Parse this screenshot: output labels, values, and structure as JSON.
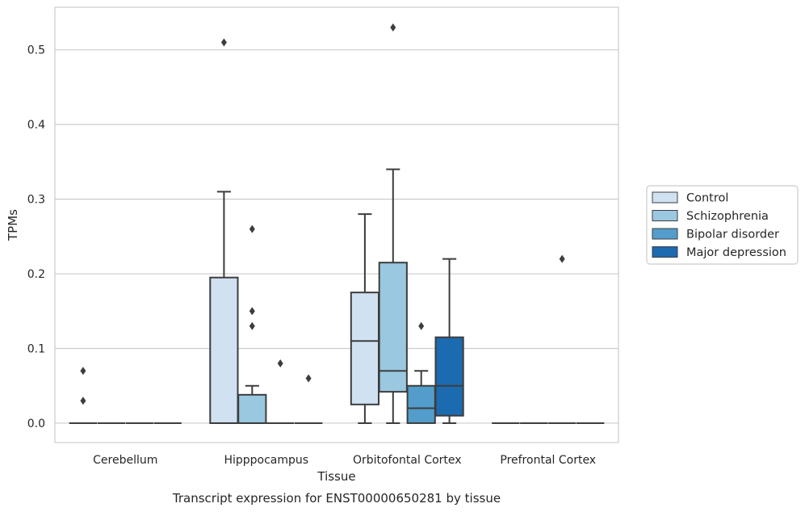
{
  "chart_data": {
    "type": "box",
    "title": "Transcript expression for ENST00000650281 by tissue",
    "xlabel": "Tissue",
    "ylabel": "TPMs",
    "ylim": [
      -0.026,
      0.557
    ],
    "yticks": [
      0.0,
      0.1,
      0.2,
      0.3,
      0.4,
      0.5
    ],
    "ytick_labels": [
      "0.0",
      "0.1",
      "0.2",
      "0.3",
      "0.4",
      "0.5"
    ],
    "grid": "horizontal",
    "legend_position": "right",
    "categories": [
      "Cerebellum",
      "Hipppocampus",
      "Orbitofontal Cortex",
      "Prefrontal Cortex"
    ],
    "series": [
      {
        "name": "Control",
        "color": "#d0e1f2",
        "boxes": [
          {
            "category": "Cerebellum",
            "q1": 0.0,
            "median": 0.0,
            "q3": 0.0,
            "whisker_low": 0.0,
            "whisker_high": 0.0,
            "outliers": [
              0.07,
              0.03
            ]
          },
          {
            "category": "Hipppocampus",
            "q1": 0.0,
            "median": 0.0,
            "q3": 0.195,
            "whisker_low": 0.0,
            "whisker_high": 0.31,
            "outliers": [
              0.51
            ]
          },
          {
            "category": "Orbitofontal Cortex",
            "q1": 0.025,
            "median": 0.11,
            "q3": 0.175,
            "whisker_low": 0.0,
            "whisker_high": 0.28,
            "outliers": []
          },
          {
            "category": "Prefrontal Cortex",
            "q1": 0.0,
            "median": 0.0,
            "q3": 0.0,
            "whisker_low": 0.0,
            "whisker_high": 0.0,
            "outliers": []
          }
        ]
      },
      {
        "name": "Schizophrenia",
        "color": "#9ac8e0",
        "boxes": [
          {
            "category": "Cerebellum",
            "q1": 0.0,
            "median": 0.0,
            "q3": 0.0,
            "whisker_low": 0.0,
            "whisker_high": 0.0,
            "outliers": []
          },
          {
            "category": "Hipppocampus",
            "q1": 0.0,
            "median": 0.0,
            "q3": 0.038,
            "whisker_low": 0.0,
            "whisker_high": 0.05,
            "outliers": [
              0.15,
              0.13,
              0.26
            ]
          },
          {
            "category": "Orbitofontal Cortex",
            "q1": 0.042,
            "median": 0.07,
            "q3": 0.215,
            "whisker_low": 0.0,
            "whisker_high": 0.34,
            "outliers": [
              0.53
            ]
          },
          {
            "category": "Prefrontal Cortex",
            "q1": 0.0,
            "median": 0.0,
            "q3": 0.0,
            "whisker_low": 0.0,
            "whisker_high": 0.0,
            "outliers": []
          }
        ]
      },
      {
        "name": "Bipolar disorder",
        "color": "#529dcc",
        "boxes": [
          {
            "category": "Cerebellum",
            "q1": 0.0,
            "median": 0.0,
            "q3": 0.0,
            "whisker_low": 0.0,
            "whisker_high": 0.0,
            "outliers": []
          },
          {
            "category": "Hipppocampus",
            "q1": 0.0,
            "median": 0.0,
            "q3": 0.0,
            "whisker_low": 0.0,
            "whisker_high": 0.0,
            "outliers": [
              0.08
            ]
          },
          {
            "category": "Orbitofontal Cortex",
            "q1": 0.0,
            "median": 0.02,
            "q3": 0.05,
            "whisker_low": 0.0,
            "whisker_high": 0.07,
            "outliers": [
              0.13
            ]
          },
          {
            "category": "Prefrontal Cortex",
            "q1": 0.0,
            "median": 0.0,
            "q3": 0.0,
            "whisker_low": 0.0,
            "whisker_high": 0.0,
            "outliers": [
              0.22
            ]
          }
        ]
      },
      {
        "name": "Major depression",
        "color": "#1c6aaf",
        "boxes": [
          {
            "category": "Cerebellum",
            "q1": 0.0,
            "median": 0.0,
            "q3": 0.0,
            "whisker_low": 0.0,
            "whisker_high": 0.0,
            "outliers": []
          },
          {
            "category": "Hipppocampus",
            "q1": 0.0,
            "median": 0.0,
            "q3": 0.0,
            "whisker_low": 0.0,
            "whisker_high": 0.0,
            "outliers": [
              0.06
            ]
          },
          {
            "category": "Orbitofontal Cortex",
            "q1": 0.01,
            "median": 0.05,
            "q3": 0.115,
            "whisker_low": 0.0,
            "whisker_high": 0.22,
            "outliers": []
          },
          {
            "category": "Prefrontal Cortex",
            "q1": 0.0,
            "median": 0.0,
            "q3": 0.0,
            "whisker_low": 0.0,
            "whisker_high": 0.0,
            "outliers": []
          }
        ]
      }
    ],
    "colors": {
      "box_edge": "#3d3d3d",
      "grid": "#cccccc",
      "frame": "#cccccc",
      "text": "#262626"
    }
  }
}
